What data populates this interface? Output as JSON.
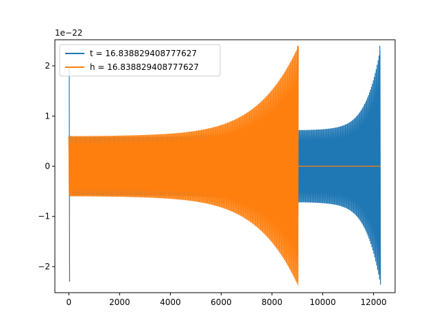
{
  "chart_data": {
    "type": "line",
    "title": "",
    "xlabel": "",
    "ylabel": "",
    "xlim": [
      -550,
      12850
    ],
    "ylim": [
      -2.52,
      2.52
    ],
    "y_offset_label": "1e−22",
    "x_ticks": [
      0,
      2000,
      4000,
      6000,
      8000,
      10000,
      12000
    ],
    "x_tick_labels": [
      "0",
      "2000",
      "4000",
      "6000",
      "8000",
      "10000",
      "12000"
    ],
    "y_ticks": [
      -2,
      -1,
      0,
      1,
      2
    ],
    "y_tick_labels": [
      "−2",
      "−1",
      "0",
      "1",
      "2"
    ],
    "grid": false,
    "legend_position": "top-left",
    "series": [
      {
        "name": "t = 16.838829408777627",
        "color": "#1f77b4",
        "segments": [
          {
            "x_start": 0,
            "x_end": 120,
            "envelope_start": 0.6,
            "envelope_end": 0.6,
            "initial_spike": [
              1.95,
              -2.3
            ]
          },
          {
            "x_start": 120,
            "x_end": 9040,
            "envelope_start": 0.58,
            "envelope_end": 0.92
          },
          {
            "x_start": 9040,
            "x_end": 12280,
            "envelope_start": 0.72,
            "envelope_end": 2.2,
            "final_peaks": [
              2.4,
              -2.15
            ]
          }
        ]
      },
      {
        "name": "h = 16.838829408777627",
        "color": "#ff7f0e",
        "segments": [
          {
            "x_start": 0,
            "x_end": 9040,
            "envelope_start": 0.6,
            "envelope_end": 2.2,
            "final_peaks": [
              2.4,
              -2.3
            ]
          },
          {
            "x_start": 9040,
            "x_end": 12280,
            "envelope_start": 0,
            "envelope_end": 0
          }
        ]
      }
    ]
  }
}
